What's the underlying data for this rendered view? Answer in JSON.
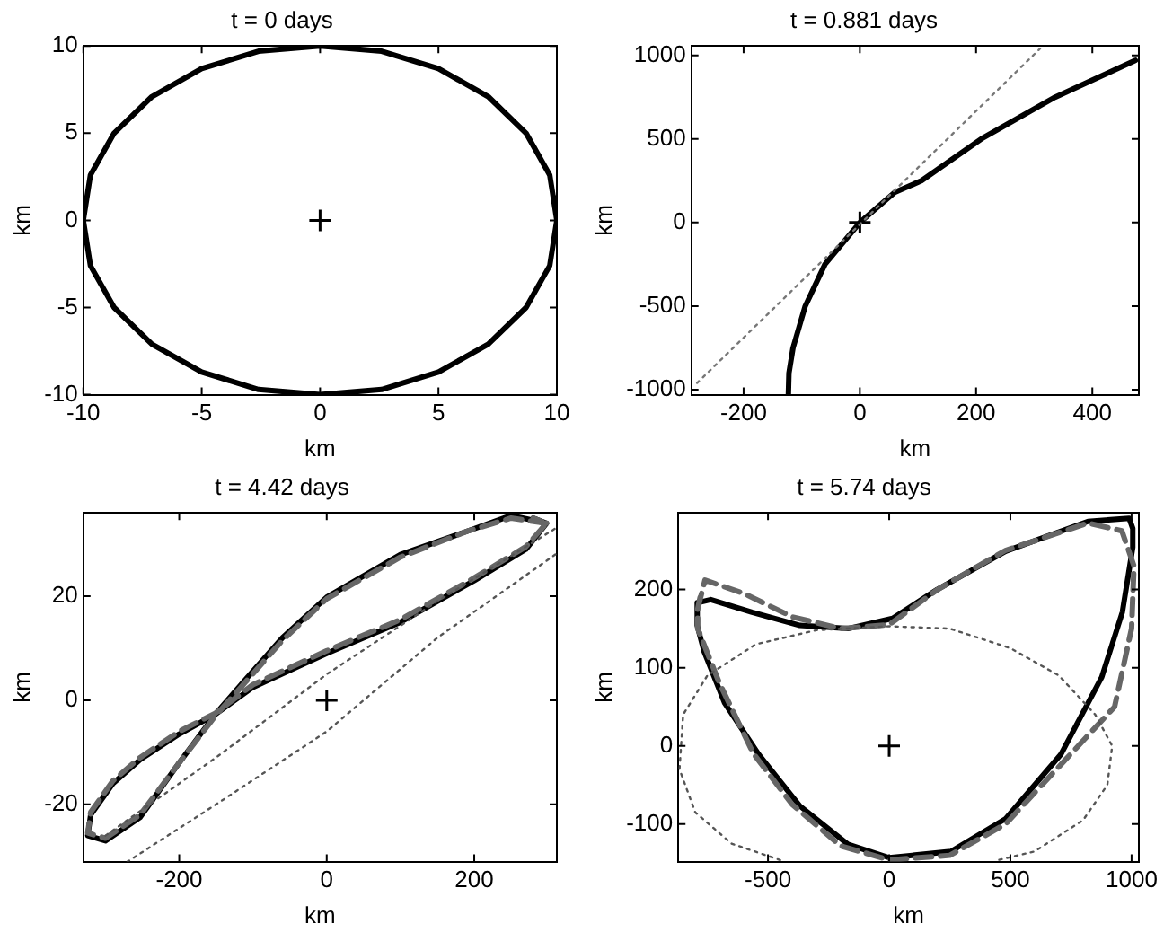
{
  "chart_data": [
    {
      "type": "line",
      "title": "t = 0 days",
      "xlabel": "km",
      "ylabel": "km",
      "xlim": [
        -10,
        10
      ],
      "ylim": [
        -10,
        10
      ],
      "xticks": [
        -10,
        -5,
        0,
        5,
        10
      ],
      "yticks": [
        -10,
        -5,
        0,
        5,
        10
      ],
      "series": [
        {
          "color": "#000000",
          "line_style": "solid",
          "marker": "none",
          "x": [
            10,
            9.7,
            8.7,
            7.1,
            5,
            2.6,
            0,
            -2.6,
            -5,
            -7.1,
            -8.7,
            -9.7,
            -10,
            -9.7,
            -8.7,
            -7.1,
            -5,
            -2.6,
            0,
            2.6,
            5,
            7.1,
            8.7,
            9.7,
            10,
            9.9
          ],
          "values": [
            0,
            2.6,
            5,
            7.1,
            8.7,
            9.7,
            10,
            9.7,
            8.7,
            7.1,
            5,
            2.6,
            0,
            -2.6,
            -5,
            -7.1,
            -8.7,
            -9.7,
            -10,
            -9.7,
            -8.7,
            -7.1,
            -5,
            -2.6,
            0,
            1.3
          ]
        },
        {
          "type": "scatter",
          "color": "#000000",
          "marker": "cross",
          "x": [
            0
          ],
          "values": [
            0
          ]
        }
      ]
    },
    {
      "type": "line",
      "title": "t = 0.881 days",
      "xlabel": "km",
      "ylabel": "km",
      "xlim": [
        -290,
        480
      ],
      "ylim": [
        -1030,
        1056
      ],
      "xticks": [
        -200,
        0,
        200,
        400
      ],
      "yticks": [
        -1000,
        -500,
        0,
        500,
        1000
      ],
      "series": [
        {
          "color": "#777777",
          "line_style": "dotted",
          "marker": "none",
          "x": [
            -280,
            310
          ],
          "values": [
            -960,
            1040
          ]
        },
        {
          "color": "#000000",
          "line_style": "solid",
          "marker": "none",
          "x": [
            -123,
            -122,
            -115,
            -94,
            -60,
            0,
            60,
            106,
            209,
            336,
            474
          ],
          "values": [
            -1030,
            -900,
            -750,
            -500,
            -250,
            0,
            180,
            250,
            500,
            750,
            970
          ]
        },
        {
          "type": "scatter",
          "color": "#000000",
          "marker": "cross",
          "x": [
            0
          ],
          "values": [
            0
          ]
        }
      ]
    },
    {
      "type": "line",
      "title": "t = 4.42 days",
      "xlabel": "km",
      "ylabel": "km",
      "xlim": [
        -330,
        312
      ],
      "ylim": [
        -31,
        36
      ],
      "xticks": [
        -200,
        0,
        200
      ],
      "yticks": [
        -20,
        0,
        20
      ],
      "series": [
        {
          "color": "#555555",
          "line_style": "dotted",
          "marker": "none",
          "x": [
            -300,
            -150,
            0,
            150,
            310
          ],
          "values": [
            -26,
            -11,
            5,
            19,
            33
          ]
        },
        {
          "color": "#555555",
          "line_style": "dotted",
          "marker": "none",
          "x": [
            310,
            150,
            0,
            -150,
            -270
          ],
          "values": [
            28,
            12,
            -6,
            -20,
            -31
          ]
        },
        {
          "color": "#666666",
          "line_style": "dashed",
          "marker": "none",
          "x": [
            298,
            250,
            191,
            100,
            0,
            -60,
            -110,
            -151,
            -200,
            -253,
            -300,
            -324,
            -320,
            -290,
            -253,
            -200,
            -151,
            -100,
            0,
            100,
            200,
            270,
            298,
            280
          ],
          "values": [
            34,
            35,
            32.5,
            27.5,
            19.5,
            11.5,
            3.5,
            -3,
            -12,
            -22,
            -26.5,
            -25.5,
            -21.5,
            -15.5,
            -11,
            -6,
            -2.5,
            3,
            9.5,
            15.5,
            23.5,
            29.5,
            34,
            35
          ]
        },
        {
          "color": "#000000",
          "line_style": "solid",
          "marker": "none",
          "x": [
            298,
            250,
            191,
            100,
            0,
            -60,
            -110,
            -151,
            -200,
            -253,
            -300,
            -324,
            -320,
            -290,
            -253,
            -200,
            -151,
            -100,
            0,
            100,
            200,
            270,
            298,
            280
          ],
          "values": [
            34,
            35.5,
            32.5,
            28,
            19.8,
            12,
            4,
            -2.7,
            -12,
            -22.5,
            -27,
            -26,
            -22,
            -16,
            -11.4,
            -6.5,
            -2.7,
            2.5,
            9,
            15,
            23,
            29,
            34,
            35
          ]
        },
        {
          "type": "scatter",
          "color": "#000000",
          "marker": "cross",
          "x": [
            0
          ],
          "values": [
            0
          ]
        }
      ]
    },
    {
      "type": "line",
      "title": "t = 5.74 days",
      "xlabel": "km",
      "ylabel": "km",
      "xlim": [
        -870,
        1030
      ],
      "ylim": [
        -148,
        298
      ],
      "xticks": [
        -500,
        0,
        500,
        1000
      ],
      "yticks": [
        -100,
        0,
        100,
        200
      ],
      "series": [
        {
          "color": "#555555",
          "line_style": "dotted",
          "marker": "none",
          "x": [
            -450,
            -650,
            -800,
            -865,
            -850,
            -750,
            -550,
            -300,
            0,
            250,
            500,
            700,
            850,
            920,
            900,
            800,
            600,
            450
          ],
          "values": [
            -146,
            -125,
            -85,
            -30,
            40,
            90,
            130,
            148,
            153,
            150,
            125,
            90,
            40,
            0,
            -50,
            -95,
            -135,
            -146
          ]
        },
        {
          "color": "#666666",
          "line_style": "dashed",
          "marker": "none",
          "x": [
            -790,
            -760,
            -600,
            -400,
            -200,
            0,
            200,
            480,
            820,
            960,
            1010,
            1000,
            930,
            720,
            480,
            250,
            0,
            -200,
            -400,
            -560,
            -700,
            -790,
            -790,
            -780
          ],
          "values": [
            175,
            212,
            195,
            165,
            150,
            155,
            200,
            250,
            285,
            275,
            230,
            150,
            50,
            -20,
            -100,
            -140,
            -146,
            -128,
            -75,
            -10,
            80,
            150,
            175,
            190
          ]
        },
        {
          "color": "#000000",
          "line_style": "solid",
          "marker": "none",
          "x": [
            990,
            820,
            481,
            198,
            14,
            -170,
            -368,
            -566,
            -736,
            -792,
            -792,
            -764,
            -679,
            -538,
            -368,
            -170,
            0,
            255,
            481,
            708,
            877,
            962,
            1005,
            1005,
            990,
            900
          ],
          "values": [
            291,
            287,
            249,
            200,
            163,
            150,
            154,
            171,
            187,
            183,
            154,
            121,
            55,
            -11,
            -77,
            -126,
            -143,
            -135,
            -93,
            -11,
            88,
            171,
            254,
            278,
            291,
            289
          ]
        },
        {
          "type": "scatter",
          "color": "#000000",
          "marker": "cross",
          "x": [
            0
          ],
          "values": [
            0
          ]
        }
      ]
    }
  ]
}
